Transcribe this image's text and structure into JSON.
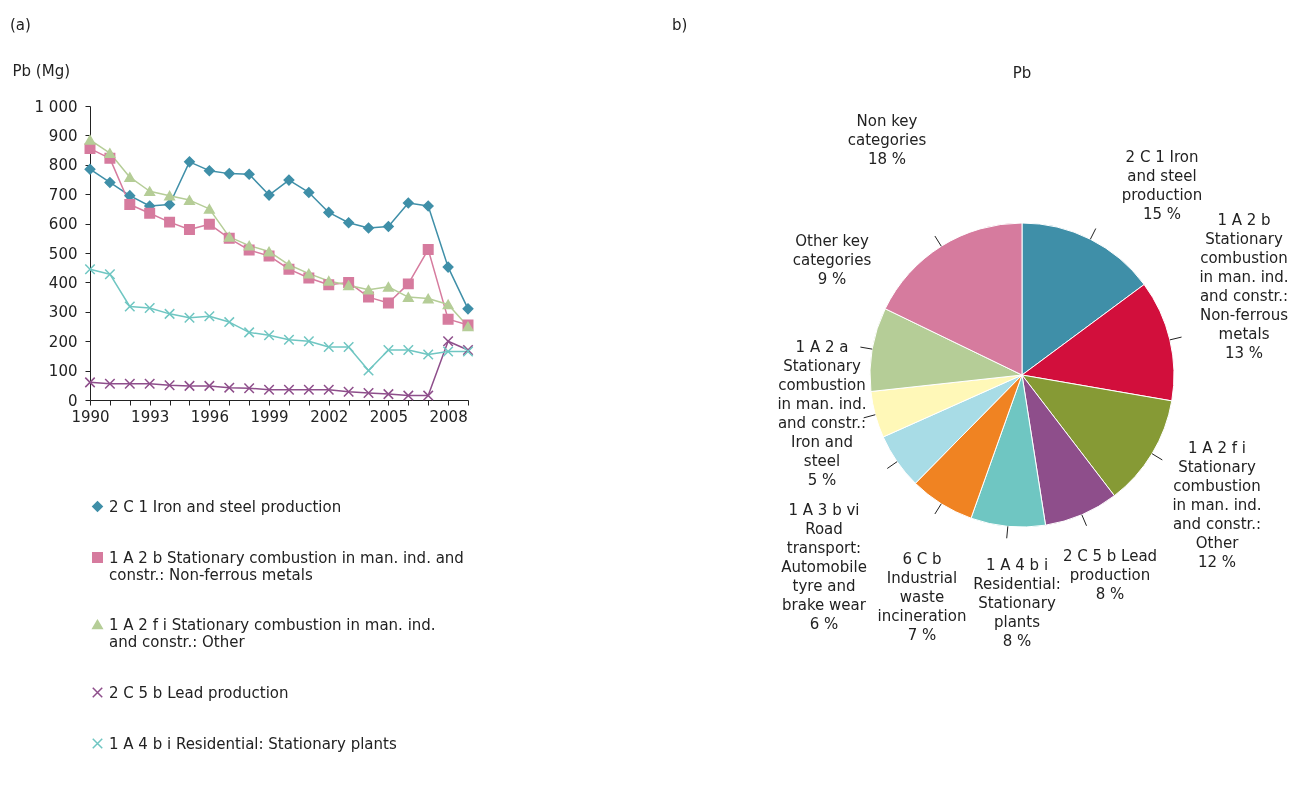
{
  "chart_data": [
    {
      "type": "line",
      "title": "(a)",
      "ylabel": "Pb (Mg)",
      "x": [
        1990,
        1991,
        1992,
        1993,
        1994,
        1995,
        1996,
        1997,
        1998,
        1999,
        2000,
        2001,
        2002,
        2003,
        2004,
        2005,
        2006,
        2007,
        2008,
        2009
      ],
      "series": [
        {
          "name": "2 C 1 Iron and steel production",
          "color": "#3f8fa8",
          "marker": "diamond",
          "values": [
            785,
            740,
            695,
            660,
            665,
            810,
            780,
            770,
            768,
            697,
            748,
            706,
            638,
            603,
            585,
            590,
            670,
            660,
            452,
            310
          ]
        },
        {
          "name": "1 A 2 b Stationary combustion in man. ind. and constr.: Non-ferrous metals",
          "color": "#d67b9e",
          "marker": "square",
          "values": [
            855,
            822,
            665,
            635,
            605,
            580,
            598,
            550,
            510,
            490,
            445,
            415,
            392,
            400,
            350,
            330,
            395,
            512,
            275,
            255
          ]
        },
        {
          "name": "1 A 2 f i Stationary combustion in man. ind. and constr.: Other",
          "color": "#b5cd97",
          "marker": "triangle",
          "values": [
            885,
            840,
            758,
            710,
            695,
            680,
            650,
            555,
            525,
            505,
            460,
            430,
            405,
            390,
            375,
            385,
            350,
            345,
            325,
            250
          ]
        },
        {
          "name": "2 C 5 b Lead production",
          "color": "#8e4e8b",
          "marker": "cross",
          "values": [
            60,
            55,
            55,
            55,
            50,
            48,
            48,
            42,
            40,
            35,
            35,
            35,
            35,
            28,
            24,
            20,
            15,
            15,
            200,
            170
          ]
        },
        {
          "name": "1 A 4 b i Residential: Stationary plants",
          "color": "#6fc6c2",
          "marker": "cross",
          "values": [
            445,
            428,
            318,
            313,
            293,
            280,
            285,
            265,
            230,
            220,
            205,
            200,
            180,
            180,
            100,
            170,
            170,
            155,
            165,
            165
          ]
        }
      ],
      "xlim": [
        1990,
        2009
      ],
      "xticks": [
        1990,
        {
          "value": 1991,
          "label": null
        },
        {
          "value": 1992,
          "label": null
        },
        1993,
        {
          "value": 1994,
          "label": null
        },
        {
          "value": 1995,
          "label": null
        },
        1996,
        {
          "value": 1997,
          "label": null
        },
        {
          "value": 1998,
          "label": null
        },
        1999,
        {
          "value": 2000,
          "label": null
        },
        {
          "value": 2001,
          "label": null
        },
        2002,
        {
          "value": 2003,
          "label": null
        },
        {
          "value": 2004,
          "label": null
        },
        2005,
        {
          "value": 2006,
          "label": null
        },
        {
          "value": 2007,
          "label": null
        },
        2008,
        {
          "value": 2009,
          "label": null
        }
      ],
      "ylim": [
        0,
        1000
      ],
      "yticks": [
        0,
        100,
        200,
        300,
        400,
        500,
        600,
        700,
        800,
        900,
        {
          "value": 1000,
          "label": "1 000"
        }
      ],
      "grid": false,
      "legend": "bottom"
    },
    {
      "type": "pie",
      "title": "Pb",
      "annotations": [
        "b)"
      ],
      "categories": [
        "2 C 1 Iron and steel production",
        "1 A 2 b Stationary combustion in man. ind. and constr.: Non-ferrous metals",
        "1 A 2 f i Stationary combustion in man. ind. and constr.: Other",
        "2 C 5 b Lead production",
        "1 A 4 b i Residential: Stationary plants",
        "6 C b Industrial waste incineration",
        "1 A 3 b vi Road transport: Automobile tyre and brake wear",
        "1 A 2 a Stationary combustion in man. ind. and constr.: Iron and steel",
        "Other key categories",
        "Non key categories"
      ],
      "values": [
        15,
        13,
        12,
        8,
        8,
        7,
        6,
        5,
        9,
        18
      ],
      "value_labels": [
        "15 %",
        "13 %",
        "12 %",
        "8 %",
        "8 %",
        "7 %",
        "6 %",
        "5 %",
        "9 %",
        "18 %"
      ],
      "colors": [
        "#3f8fa8",
        "#d20f3c",
        "#869a35",
        "#8e4e8b",
        "#6fc6c2",
        "#f08322",
        "#a8dce6",
        "#fff8b8",
        "#b5cd97",
        "#d67b9e"
      ]
    }
  ]
}
